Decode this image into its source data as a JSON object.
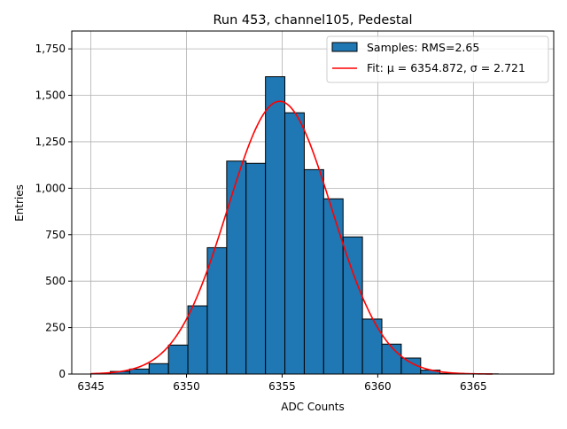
{
  "chart_data": {
    "type": "bar",
    "title": "Run 453, channel105, Pedestal",
    "xlabel": "ADC Counts",
    "ylabel": "Entries",
    "xlim": [
      6344.0,
      6369.2
    ],
    "ylim": [
      0,
      1846
    ],
    "grid": true,
    "legend_position": "top-right",
    "xticks": [
      6345,
      6350,
      6355,
      6360,
      6365
    ],
    "yticks": [
      0,
      250,
      500,
      750,
      1000,
      1250,
      1500,
      1750
    ],
    "bin_start": 6345,
    "bin_width": 1.0143,
    "counts": [
      2,
      14,
      27,
      56,
      156,
      367,
      680,
      1146,
      1134,
      1600,
      1406,
      1100,
      943,
      738,
      296,
      161,
      86,
      21,
      3,
      1,
      1
    ],
    "series": [
      {
        "name": "Samples: RMS=2.65",
        "type": "histogram",
        "color": "#1f77b4"
      },
      {
        "name": "Fit: μ = 6354.872, σ = 2.721",
        "type": "line",
        "color": "#ff0000",
        "mu": 6354.872,
        "sigma": 2.721,
        "amplitude": 1468,
        "x_range": [
          6345,
          6366
        ]
      }
    ]
  }
}
